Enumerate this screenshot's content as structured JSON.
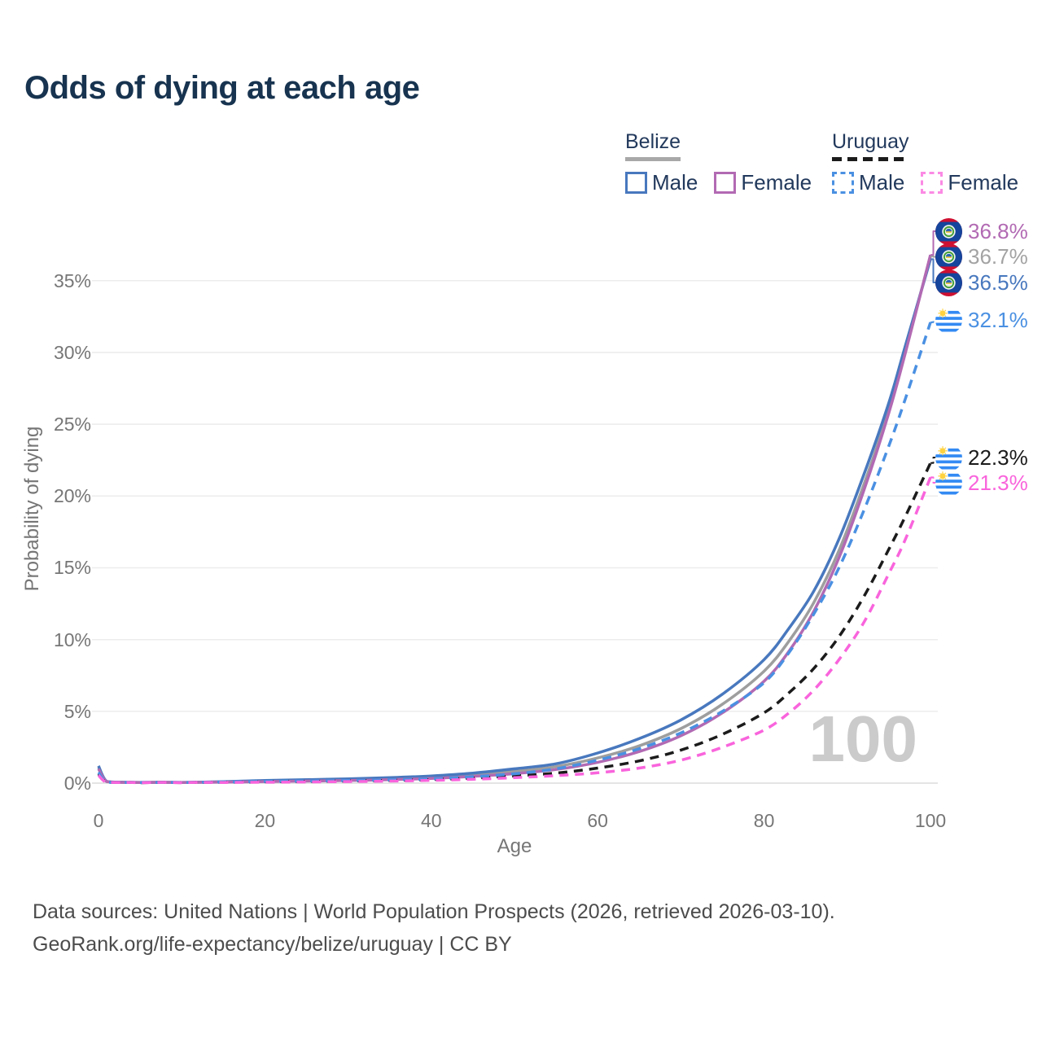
{
  "title": "Odds of dying at each age",
  "watermark": "100",
  "legend": {
    "groups": [
      {
        "id": "belize",
        "label": "Belize",
        "line_style": "solid",
        "line_color": "#a8a8a8",
        "items": [
          {
            "id": "belize-male",
            "label": "Male",
            "color": "#4878be",
            "dashed": false
          },
          {
            "id": "belize-female",
            "label": "Female",
            "color": "#b26ab3",
            "dashed": false
          }
        ]
      },
      {
        "id": "uruguay",
        "label": "Uruguay",
        "line_style": "dashed",
        "line_color": "#1b1b1b",
        "items": [
          {
            "id": "uruguay-male",
            "label": "Male",
            "color": "#4a90e2",
            "dashed": true
          },
          {
            "id": "uruguay-female",
            "label": "Female",
            "color": "#fb8ae4",
            "dashed": true
          }
        ]
      }
    ]
  },
  "chart_data": {
    "type": "line",
    "title": "Odds of dying at each age",
    "xlabel": "Age",
    "ylabel": "Probability of dying",
    "xlim": [
      0,
      100
    ],
    "ylim_pct": [
      0,
      38.5
    ],
    "grid": true,
    "x_ticks": [
      "0",
      "20",
      "40",
      "60",
      "80",
      "100"
    ],
    "x_tick_values": [
      0,
      20,
      40,
      60,
      80,
      100
    ],
    "y_ticks": [
      "0%",
      "5%",
      "10%",
      "15%",
      "20%",
      "25%",
      "30%",
      "35%"
    ],
    "y_tick_values_pct": [
      0,
      5,
      10,
      15,
      20,
      25,
      30,
      35
    ],
    "ages": [
      0,
      1,
      3,
      5,
      10,
      15,
      20,
      25,
      30,
      35,
      40,
      45,
      50,
      55,
      60,
      65,
      70,
      75,
      80,
      83,
      86,
      89,
      92,
      95,
      97,
      100
    ],
    "series": [
      {
        "id": "belize-both",
        "name": "Belize",
        "country": "Belize",
        "sex": "Both sexes",
        "color": "#9e9e9e",
        "label_color": "#a3a3a3",
        "dashed": false,
        "flag": "belize",
        "end_label": "36.7%",
        "end_value_pct": 36.7,
        "values_pct": [
          1.1,
          0.11,
          0.055,
          0.045,
          0.045,
          0.09,
          0.15,
          0.2,
          0.25,
          0.32,
          0.42,
          0.58,
          0.82,
          1.15,
          1.75,
          2.6,
          3.8,
          5.5,
          7.8,
          9.9,
          12.6,
          16.2,
          20.8,
          26.0,
          30.2,
          36.7
        ]
      },
      {
        "id": "belize-male",
        "name": "Belize Male",
        "country": "Belize",
        "sex": "Male",
        "color": "#4878be",
        "label_color": "#4878be",
        "dashed": false,
        "flag": "belize",
        "end_label": "36.5%",
        "end_value_pct": 36.5,
        "values_pct": [
          1.2,
          0.12,
          0.06,
          0.05,
          0.05,
          0.1,
          0.18,
          0.24,
          0.3,
          0.38,
          0.5,
          0.7,
          1.0,
          1.35,
          2.1,
          3.1,
          4.4,
          6.2,
          8.6,
          10.8,
          13.4,
          17.0,
          21.5,
          26.5,
          30.5,
          36.5
        ]
      },
      {
        "id": "belize-female",
        "name": "Belize Female",
        "country": "Belize",
        "sex": "Female",
        "color": "#b26ab3",
        "label_color": "#b26ab3",
        "dashed": false,
        "flag": "belize",
        "end_label": "36.8%",
        "end_value_pct": 36.8,
        "values_pct": [
          1.0,
          0.1,
          0.05,
          0.04,
          0.04,
          0.07,
          0.11,
          0.14,
          0.18,
          0.24,
          0.33,
          0.47,
          0.66,
          0.95,
          1.45,
          2.2,
          3.3,
          4.9,
          7.1,
          9.2,
          12.0,
          15.7,
          20.4,
          25.8,
          30.0,
          36.8
        ]
      },
      {
        "id": "uruguay-both",
        "name": "Uruguay",
        "country": "Uruguay",
        "sex": "Both sexes",
        "color": "#1b1b1b",
        "label_color": "#1b1b1b",
        "dashed": true,
        "flag": "uruguay",
        "end_label": "22.3%",
        "end_value_pct": 22.3,
        "values_pct": [
          0.65,
          0.05,
          0.03,
          0.03,
          0.035,
          0.06,
          0.09,
          0.12,
          0.15,
          0.19,
          0.25,
          0.35,
          0.5,
          0.7,
          1.05,
          1.55,
          2.3,
          3.4,
          4.9,
          6.3,
          8.0,
          10.2,
          13.0,
          16.3,
          18.6,
          22.3
        ]
      },
      {
        "id": "uruguay-male",
        "name": "Uruguay Male",
        "country": "Uruguay",
        "sex": "Male",
        "color": "#4a90e2",
        "label_color": "#4a90e2",
        "dashed": true,
        "flag": "uruguay",
        "end_label": "32.1%",
        "end_value_pct": 32.1,
        "values_pct": [
          0.75,
          0.06,
          0.04,
          0.035,
          0.04,
          0.08,
          0.12,
          0.15,
          0.18,
          0.23,
          0.3,
          0.45,
          0.65,
          1.0,
          1.6,
          2.4,
          3.5,
          5.0,
          7.0,
          9.1,
          11.8,
          15.0,
          19.0,
          23.5,
          26.8,
          32.1
        ]
      },
      {
        "id": "uruguay-female",
        "name": "Uruguay Female",
        "country": "Uruguay",
        "sex": "Female",
        "color": "#f964dc",
        "label_color": "#f964dc",
        "dashed": true,
        "flag": "uruguay",
        "end_label": "21.3%",
        "end_value_pct": 21.3,
        "values_pct": [
          0.55,
          0.045,
          0.028,
          0.025,
          0.03,
          0.045,
          0.06,
          0.08,
          0.11,
          0.14,
          0.19,
          0.27,
          0.38,
          0.52,
          0.72,
          1.05,
          1.6,
          2.5,
          3.7,
          4.9,
          6.5,
          8.6,
          11.2,
          14.6,
          17.0,
          21.3
        ]
      }
    ]
  },
  "footer": {
    "line1": "Data sources: United Nations | World Population Prospects (2026, retrieved 2026-03-10).",
    "line2": "GeoRank.org/life-expectancy/belize/uruguay | CC BY"
  }
}
